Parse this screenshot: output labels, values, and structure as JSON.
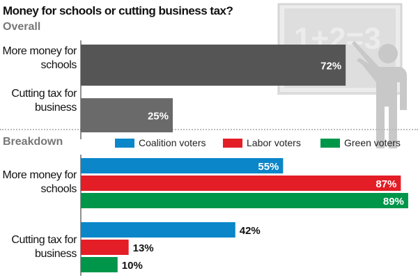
{
  "chart_data": [
    {
      "type": "bar",
      "orientation": "horizontal",
      "title": "Money for schools or cutting business tax?",
      "subtitle": "Overall",
      "categories": [
        "More money for schools",
        "Cutting tax for business"
      ],
      "values": [
        72,
        25
      ],
      "value_labels": [
        "72%",
        "25%"
      ],
      "xlim": [
        0,
        90
      ],
      "color": "#555555"
    },
    {
      "type": "bar",
      "orientation": "horizontal",
      "subtitle": "Breakdown",
      "categories": [
        "More money for schools",
        "Cutting tax for business"
      ],
      "series": [
        {
          "name": "Coalition voters",
          "color": "#0a86c9",
          "values": [
            55,
            42
          ],
          "value_labels": [
            "55%",
            "42%"
          ]
        },
        {
          "name": "Labor voters",
          "color": "#e31e26",
          "values": [
            87,
            13
          ],
          "value_labels": [
            "87%",
            "13%"
          ]
        },
        {
          "name": "Green voters",
          "color": "#00964a",
          "values": [
            89,
            10
          ],
          "value_labels": [
            "89%",
            "10%"
          ]
        }
      ],
      "xlim": [
        0,
        90
      ],
      "legend": "top"
    }
  ],
  "illustration": {
    "chalkboard_text": "1+2=3"
  }
}
